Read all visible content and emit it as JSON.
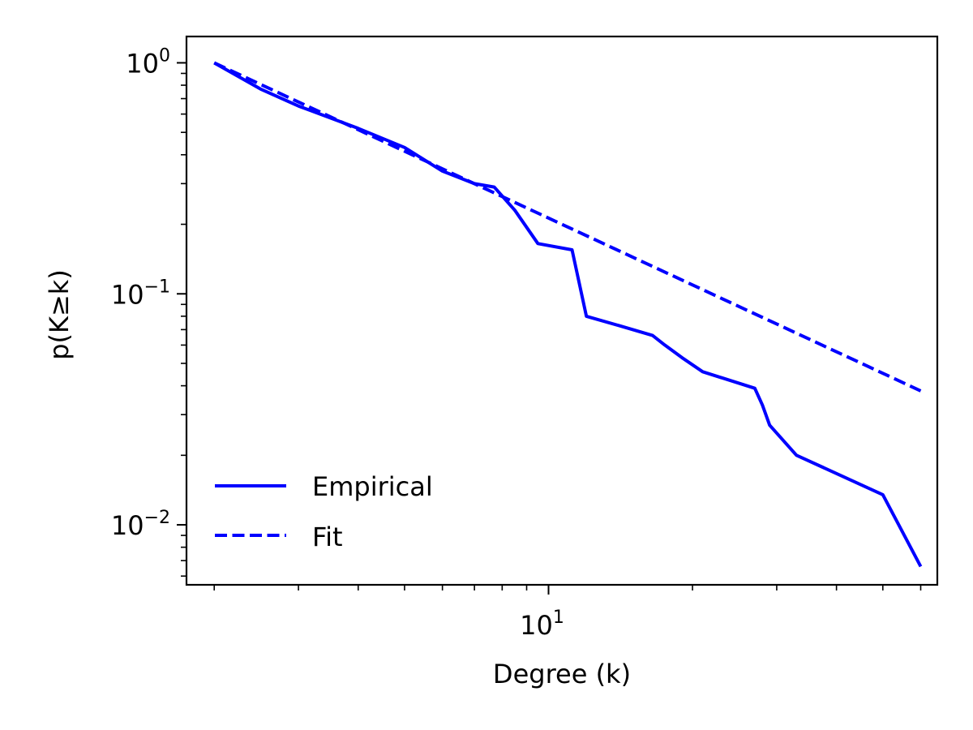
{
  "chart_data": {
    "type": "line",
    "xscale": "log",
    "yscale": "log",
    "xlim": [
      1.75,
      65
    ],
    "ylim": [
      0.0055,
      1.3
    ],
    "xlabel": "Degree (k)",
    "ylabel": "p(K≥k)",
    "grid": false,
    "legend_position": "lower-left",
    "x_ticks": [
      {
        "base": "10",
        "exp": "1",
        "value": 10
      }
    ],
    "y_ticks": [
      {
        "base": "10",
        "exp": "0",
        "value": 1
      },
      {
        "base": "10",
        "exp": "−1",
        "value": 0.1
      },
      {
        "base": "10",
        "exp": "−2",
        "value": 0.01
      }
    ],
    "series": [
      {
        "name": "Empirical",
        "style": "solid",
        "color": "#0000ff",
        "x": [
          2,
          2.5,
          3,
          4,
          5,
          6,
          7,
          7.7,
          8.5,
          9.5,
          11.2,
          12,
          14,
          16.5,
          17.5,
          19,
          21,
          27,
          28,
          29,
          33,
          50,
          60
        ],
        "y": [
          1.0,
          0.77,
          0.65,
          0.52,
          0.43,
          0.34,
          0.3,
          0.29,
          0.23,
          0.165,
          0.155,
          0.08,
          0.073,
          0.066,
          0.06,
          0.053,
          0.046,
          0.039,
          0.033,
          0.027,
          0.02,
          0.0135,
          0.0066
        ]
      },
      {
        "name": "Fit",
        "style": "dashed",
        "color": "#0000ff",
        "x": [
          2,
          60
        ],
        "y": [
          1.0,
          0.038
        ]
      }
    ]
  }
}
